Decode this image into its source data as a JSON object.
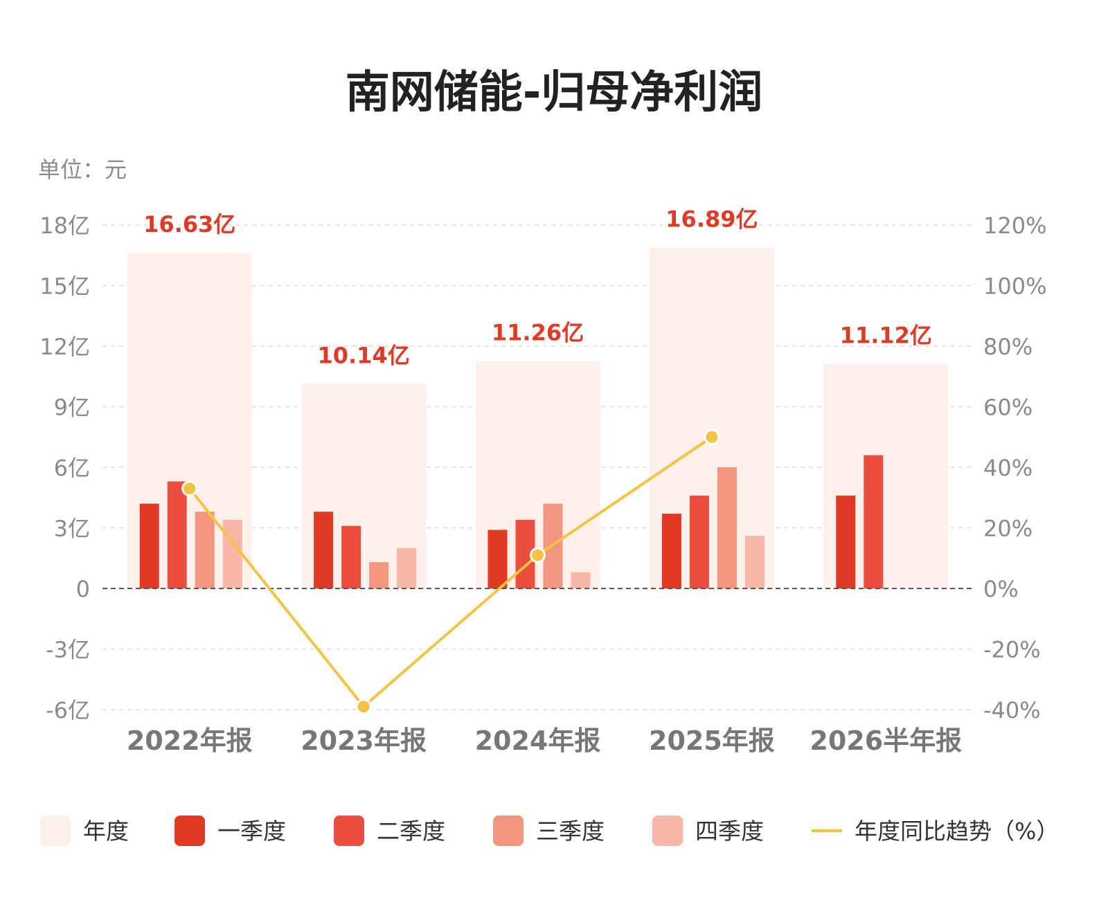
{
  "chart_data": {
    "type": "bar",
    "title": "南网储能-归母净利润",
    "unit_label": "单位：元",
    "categories": [
      "2022年报",
      "2023年报",
      "2024年报",
      "2025年报",
      "2026半年报"
    ],
    "annual": {
      "name": "年度",
      "values": [
        16.63,
        10.14,
        11.26,
        16.89,
        11.12
      ],
      "labels": [
        "16.63亿",
        "10.14亿",
        "11.26亿",
        "16.89亿",
        "11.12亿"
      ],
      "color": "#fff0ec"
    },
    "series": [
      {
        "name": "一季度",
        "values": [
          4.2,
          3.8,
          2.9,
          3.7,
          4.6
        ],
        "color": "#e03a24"
      },
      {
        "name": "二季度",
        "values": [
          5.3,
          3.1,
          3.4,
          4.6,
          6.6
        ],
        "color": "#eb4e3e"
      },
      {
        "name": "三季度",
        "values": [
          3.8,
          1.3,
          4.2,
          6.0,
          null
        ],
        "color": "#f29680"
      },
      {
        "name": "四季度",
        "values": [
          3.4,
          2.0,
          0.8,
          2.6,
          null
        ],
        "color": "#f9b5a6"
      }
    ],
    "line": {
      "name": "年度同比趋势（%）",
      "values": [
        33,
        -39,
        11,
        50,
        null
      ],
      "color": "#f5c342"
    },
    "y_left": {
      "ticks": [
        18,
        15,
        12,
        9,
        6,
        3,
        0,
        -3,
        -6
      ],
      "tick_labels": [
        "18亿",
        "15亿",
        "12亿",
        "9亿",
        "6亿",
        "3亿",
        "0",
        "-3亿",
        "-6亿"
      ],
      "ylim": [
        -6,
        18
      ]
    },
    "y_right": {
      "ticks": [
        120,
        100,
        80,
        60,
        40,
        20,
        0,
        -20,
        -40
      ],
      "tick_labels": [
        "120%",
        "100%",
        "80%",
        "60%",
        "40%",
        "20%",
        "0%",
        "-20%",
        "-40%"
      ],
      "ylim": [
        -40,
        120
      ]
    },
    "grid": true,
    "legend_position": "bottom"
  }
}
